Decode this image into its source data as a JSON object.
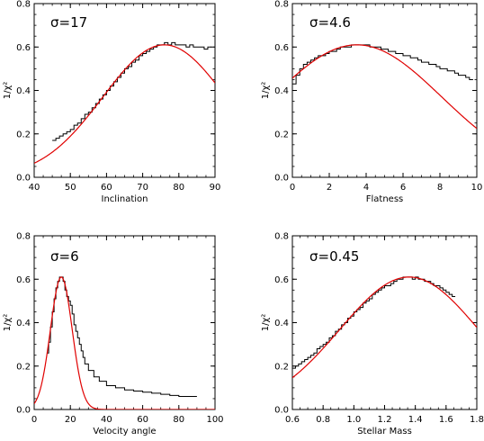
{
  "chart_data": [
    {
      "type": "line",
      "annotation": "σ=17",
      "xlabel": "Inclination",
      "ylabel": "1/χ²",
      "xlim": [
        40,
        90
      ],
      "ylim": [
        0,
        0.8
      ],
      "xticks": [
        40,
        50,
        60,
        70,
        80,
        90
      ],
      "yticks": [
        0.0,
        0.2,
        0.4,
        0.6,
        0.8
      ],
      "series": [
        {
          "color": "#000000",
          "style": "step",
          "x": [
            45,
            46,
            47,
            48,
            49,
            50,
            51,
            52,
            53,
            54,
            55,
            56,
            57,
            58,
            59,
            60,
            61,
            62,
            63,
            64,
            65,
            66,
            67,
            68,
            69,
            70,
            71,
            72,
            73,
            74,
            75,
            76,
            77,
            78,
            79,
            80,
            81,
            82,
            83,
            84,
            85,
            86,
            87,
            88
          ],
          "y": [
            0.17,
            0.18,
            0.19,
            0.2,
            0.21,
            0.22,
            0.24,
            0.25,
            0.27,
            0.29,
            0.3,
            0.32,
            0.34,
            0.36,
            0.38,
            0.4,
            0.42,
            0.44,
            0.46,
            0.48,
            0.5,
            0.51,
            0.53,
            0.54,
            0.56,
            0.57,
            0.58,
            0.59,
            0.6,
            0.61,
            0.61,
            0.62,
            0.61,
            0.62,
            0.61,
            0.61,
            0.61,
            0.6,
            0.61,
            0.6,
            0.6,
            0.6,
            0.59,
            0.6
          ]
        },
        {
          "color": "#e00000",
          "style": "gaussian",
          "mu": 76,
          "sigma": 17,
          "amp": 0.61,
          "xrange": [
            40,
            90
          ]
        }
      ]
    },
    {
      "type": "line",
      "annotation": "σ=4.6",
      "xlabel": "Flatness",
      "ylabel": "1/χ²",
      "xlim": [
        0,
        10
      ],
      "ylim": [
        0,
        0.8
      ],
      "xticks": [
        0,
        2,
        4,
        6,
        8,
        10
      ],
      "yticks": [
        0.0,
        0.2,
        0.4,
        0.6,
        0.8
      ],
      "series": [
        {
          "color": "#000000",
          "style": "step",
          "x": [
            0,
            0.2,
            0.4,
            0.6,
            0.8,
            1.0,
            1.2,
            1.4,
            1.6,
            1.8,
            2.0,
            2.2,
            2.4,
            2.6,
            2.8,
            3.0,
            3.2,
            3.4,
            3.6,
            3.8,
            4.0,
            4.2,
            4.4,
            4.6,
            4.8,
            5.0,
            5.2,
            5.4,
            5.6,
            5.8,
            6.0,
            6.2,
            6.4,
            6.6,
            6.8,
            7.0,
            7.2,
            7.4,
            7.6,
            7.8,
            8.0,
            8.2,
            8.4,
            8.6,
            8.8,
            9.0,
            9.2,
            9.4,
            9.6
          ],
          "y": [
            0.43,
            0.47,
            0.5,
            0.52,
            0.53,
            0.54,
            0.55,
            0.56,
            0.56,
            0.57,
            0.58,
            0.58,
            0.59,
            0.6,
            0.6,
            0.6,
            0.61,
            0.61,
            0.61,
            0.61,
            0.61,
            0.6,
            0.6,
            0.6,
            0.59,
            0.59,
            0.58,
            0.58,
            0.57,
            0.57,
            0.56,
            0.56,
            0.55,
            0.55,
            0.54,
            0.53,
            0.53,
            0.52,
            0.52,
            0.51,
            0.5,
            0.5,
            0.49,
            0.49,
            0.48,
            0.47,
            0.47,
            0.46,
            0.45
          ]
        },
        {
          "color": "#e00000",
          "style": "gaussian",
          "mu": 3.5,
          "sigma": 4.6,
          "amp": 0.61,
          "xrange": [
            0,
            10
          ]
        }
      ]
    },
    {
      "type": "line",
      "annotation": "σ=6",
      "xlabel": "Velocity angle",
      "ylabel": "1/χ²",
      "xlim": [
        0,
        100
      ],
      "ylim": [
        0,
        0.8
      ],
      "xticks": [
        0,
        20,
        40,
        60,
        80,
        100
      ],
      "yticks": [
        0.0,
        0.2,
        0.4,
        0.6,
        0.8
      ],
      "series": [
        {
          "color": "#000000",
          "style": "step",
          "x": [
            7,
            8,
            9,
            10,
            11,
            12,
            13,
            14,
            15,
            16,
            17,
            18,
            19,
            20,
            21,
            22,
            23,
            24,
            25,
            26,
            27,
            28,
            30,
            33,
            36,
            40,
            45,
            50,
            55,
            60,
            65,
            70,
            75,
            80,
            85
          ],
          "y": [
            0.26,
            0.31,
            0.38,
            0.45,
            0.51,
            0.56,
            0.59,
            0.61,
            0.61,
            0.59,
            0.55,
            0.52,
            0.5,
            0.48,
            0.44,
            0.39,
            0.36,
            0.33,
            0.3,
            0.27,
            0.24,
            0.21,
            0.18,
            0.15,
            0.13,
            0.11,
            0.1,
            0.09,
            0.085,
            0.08,
            0.075,
            0.07,
            0.065,
            0.06,
            0.06
          ]
        },
        {
          "color": "#e00000",
          "style": "gaussian",
          "mu": 15,
          "sigma": 6,
          "amp": 0.61,
          "xrange": [
            0,
            100
          ]
        }
      ]
    },
    {
      "type": "line",
      "annotation": "σ=0.45",
      "xlabel": "Stellar Mass",
      "ylabel": "1/χ²",
      "xlim": [
        0.6,
        1.8
      ],
      "ylim": [
        0,
        0.8
      ],
      "xticks": [
        0.6,
        0.8,
        1.0,
        1.2,
        1.4,
        1.6,
        1.8
      ],
      "yticks": [
        0.0,
        0.2,
        0.4,
        0.6,
        0.8
      ],
      "series": [
        {
          "color": "#000000",
          "style": "step",
          "x": [
            0.6,
            0.62,
            0.64,
            0.66,
            0.68,
            0.7,
            0.72,
            0.74,
            0.76,
            0.78,
            0.8,
            0.82,
            0.84,
            0.86,
            0.88,
            0.9,
            0.92,
            0.94,
            0.96,
            0.98,
            1.0,
            1.02,
            1.04,
            1.06,
            1.08,
            1.1,
            1.12,
            1.14,
            1.16,
            1.18,
            1.2,
            1.22,
            1.24,
            1.26,
            1.28,
            1.3,
            1.32,
            1.34,
            1.36,
            1.38,
            1.4,
            1.42,
            1.44,
            1.46,
            1.48,
            1.5,
            1.52,
            1.54,
            1.56,
            1.58,
            1.6,
            1.62,
            1.64
          ],
          "y": [
            0.19,
            0.2,
            0.21,
            0.22,
            0.23,
            0.24,
            0.25,
            0.26,
            0.28,
            0.29,
            0.3,
            0.31,
            0.33,
            0.34,
            0.36,
            0.37,
            0.39,
            0.4,
            0.42,
            0.43,
            0.45,
            0.46,
            0.47,
            0.49,
            0.5,
            0.51,
            0.53,
            0.54,
            0.55,
            0.56,
            0.57,
            0.57,
            0.58,
            0.59,
            0.6,
            0.6,
            0.61,
            0.61,
            0.61,
            0.6,
            0.61,
            0.6,
            0.6,
            0.59,
            0.59,
            0.58,
            0.57,
            0.57,
            0.56,
            0.55,
            0.54,
            0.53,
            0.52
          ]
        },
        {
          "color": "#e00000",
          "style": "gaussian",
          "mu": 1.36,
          "sigma": 0.45,
          "amp": 0.61,
          "xrange": [
            0.6,
            1.8
          ]
        }
      ]
    }
  ]
}
